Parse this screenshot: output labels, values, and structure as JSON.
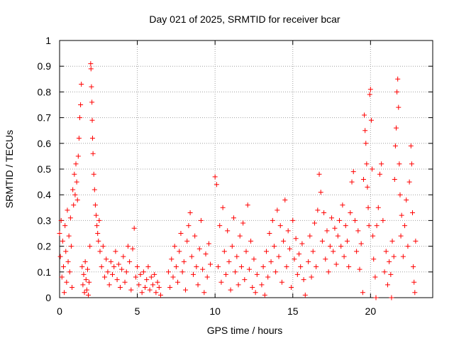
{
  "chart_data": {
    "type": "scatter",
    "title": "Day 021 of 2025, SRMTID for receiver bcar",
    "xlabel": "GPS time / hours",
    "ylabel": "SRMTID / TECUs",
    "xlim": [
      0,
      24
    ],
    "ylim": [
      0,
      1
    ],
    "grid": true,
    "legend": "none",
    "x_ticks": [
      0,
      5,
      10,
      15,
      20
    ],
    "x_tick_labels": [
      "0",
      "5",
      "10",
      "15",
      "20"
    ],
    "y_ticks": [
      0,
      0.1,
      0.2,
      0.3,
      0.4,
      0.5,
      0.6,
      0.7,
      0.8,
      0.9,
      1
    ],
    "y_tick_labels": [
      "0",
      "0.1",
      "0.2",
      "0.3",
      "0.4",
      "0.5",
      "0.6",
      "0.7",
      "0.8",
      "0.9",
      "1"
    ],
    "marker": "+",
    "series": [
      {
        "name": "SRMTID",
        "color": "#ff0000",
        "points": [
          [
            0.0,
            0.25
          ],
          [
            0.05,
            0.16
          ],
          [
            0.1,
            0.3
          ],
          [
            0.15,
            0.08
          ],
          [
            0.2,
            0.22
          ],
          [
            0.25,
            0.12
          ],
          [
            0.3,
            0.02
          ],
          [
            0.35,
            0.28
          ],
          [
            0.4,
            0.18
          ],
          [
            0.45,
            0.06
          ],
          [
            0.5,
            0.34
          ],
          [
            0.55,
            0.14
          ],
          [
            0.6,
            0.24
          ],
          [
            0.65,
            0.1
          ],
          [
            0.7,
            0.31
          ],
          [
            0.75,
            0.2
          ],
          [
            0.8,
            0.04
          ],
          [
            0.85,
            0.42
          ],
          [
            0.9,
            0.36
          ],
          [
            0.95,
            0.48
          ],
          [
            1.0,
            0.4
          ],
          [
            1.05,
            0.52
          ],
          [
            1.1,
            0.45
          ],
          [
            1.15,
            0.38
          ],
          [
            1.2,
            0.55
          ],
          [
            1.25,
            0.62
          ],
          [
            1.3,
            0.7
          ],
          [
            1.35,
            0.75
          ],
          [
            1.4,
            0.83
          ],
          [
            1.45,
            0.12
          ],
          [
            1.5,
            0.05
          ],
          [
            1.55,
            0.09
          ],
          [
            1.6,
            0.02
          ],
          [
            1.65,
            0.14
          ],
          [
            1.7,
            0.07
          ],
          [
            1.75,
            0.03
          ],
          [
            1.8,
            0.11
          ],
          [
            1.85,
            0.01
          ],
          [
            1.9,
            0.06
          ],
          [
            1.95,
            0.2
          ],
          [
            2.0,
            0.91
          ],
          [
            2.02,
            0.89
          ],
          [
            2.05,
            0.82
          ],
          [
            2.08,
            0.76
          ],
          [
            2.1,
            0.69
          ],
          [
            2.12,
            0.62
          ],
          [
            2.15,
            0.56
          ],
          [
            2.2,
            0.48
          ],
          [
            2.25,
            0.42
          ],
          [
            2.3,
            0.36
          ],
          [
            2.35,
            0.32
          ],
          [
            2.4,
            0.28
          ],
          [
            2.45,
            0.25
          ],
          [
            2.5,
            0.22
          ],
          [
            2.55,
            0.3
          ],
          [
            2.6,
            0.18
          ],
          [
            2.7,
            0.12
          ],
          [
            2.8,
            0.2
          ],
          [
            2.9,
            0.08
          ],
          [
            3.0,
            0.15
          ],
          [
            3.1,
            0.1
          ],
          [
            3.2,
            0.05
          ],
          [
            3.3,
            0.14
          ],
          [
            3.4,
            0.09
          ],
          [
            3.5,
            0.12
          ],
          [
            3.6,
            0.18
          ],
          [
            3.7,
            0.07
          ],
          [
            3.8,
            0.13
          ],
          [
            3.9,
            0.04
          ],
          [
            4.0,
            0.11
          ],
          [
            4.1,
            0.16
          ],
          [
            4.2,
            0.06
          ],
          [
            4.3,
            0.1
          ],
          [
            4.4,
            0.2
          ],
          [
            4.5,
            0.14
          ],
          [
            4.6,
            0.03
          ],
          [
            4.7,
            0.19
          ],
          [
            4.8,
            0.27
          ],
          [
            4.9,
            0.08
          ],
          [
            5.0,
            0.12
          ],
          [
            5.1,
            0.05
          ],
          [
            5.2,
            0.09
          ],
          [
            5.3,
            0.02
          ],
          [
            5.4,
            0.1
          ],
          [
            5.5,
            0.04
          ],
          [
            5.6,
            0.07
          ],
          [
            5.7,
            0.12
          ],
          [
            5.8,
            0.03
          ],
          [
            5.9,
            0.08
          ],
          [
            6.0,
            0.05
          ],
          [
            6.1,
            0.09
          ],
          [
            6.2,
            0.02
          ],
          [
            6.3,
            0.06
          ],
          [
            6.4,
            0.04
          ],
          [
            6.5,
            0.01
          ],
          [
            7.0,
            0.1
          ],
          [
            7.1,
            0.04
          ],
          [
            7.2,
            0.15
          ],
          [
            7.3,
            0.08
          ],
          [
            7.4,
            0.2
          ],
          [
            7.5,
            0.12
          ],
          [
            7.6,
            0.06
          ],
          [
            7.7,
            0.18
          ],
          [
            7.8,
            0.25
          ],
          [
            7.9,
            0.1
          ],
          [
            8.0,
            0.14
          ],
          [
            8.1,
            0.03
          ],
          [
            8.2,
            0.22
          ],
          [
            8.3,
            0.28
          ],
          [
            8.4,
            0.33
          ],
          [
            8.5,
            0.16
          ],
          [
            8.6,
            0.09
          ],
          [
            8.7,
            0.24
          ],
          [
            8.8,
            0.12
          ],
          [
            8.9,
            0.05
          ],
          [
            9.0,
            0.19
          ],
          [
            9.1,
            0.3
          ],
          [
            9.2,
            0.11
          ],
          [
            9.3,
            0.02
          ],
          [
            9.4,
            0.17
          ],
          [
            9.5,
            0.08
          ],
          [
            9.6,
            0.21
          ],
          [
            9.7,
            0.13
          ],
          [
            10.0,
            0.47
          ],
          [
            10.1,
            0.44
          ],
          [
            10.2,
            0.12
          ],
          [
            10.3,
            0.28
          ],
          [
            10.4,
            0.06
          ],
          [
            10.5,
            0.35
          ],
          [
            10.6,
            0.18
          ],
          [
            10.7,
            0.09
          ],
          [
            10.8,
            0.26
          ],
          [
            10.9,
            0.14
          ],
          [
            11.0,
            0.03
          ],
          [
            11.1,
            0.2
          ],
          [
            11.2,
            0.31
          ],
          [
            11.3,
            0.1
          ],
          [
            11.4,
            0.16
          ],
          [
            11.5,
            0.05
          ],
          [
            11.6,
            0.24
          ],
          [
            11.7,
            0.12
          ],
          [
            11.8,
            0.29
          ],
          [
            11.9,
            0.07
          ],
          [
            12.0,
            0.18
          ],
          [
            12.1,
            0.36
          ],
          [
            12.2,
            0.11
          ],
          [
            12.3,
            0.22
          ],
          [
            12.4,
            0.04
          ],
          [
            12.5,
            0.15
          ],
          [
            12.6,
            0.02
          ],
          [
            12.7,
            0.09
          ],
          [
            13.0,
            0.05
          ],
          [
            13.1,
            0.12
          ],
          [
            13.2,
            0.01
          ],
          [
            13.3,
            0.18
          ],
          [
            13.4,
            0.08
          ],
          [
            13.5,
            0.25
          ],
          [
            13.6,
            0.14
          ],
          [
            13.7,
            0.3
          ],
          [
            13.8,
            0.2
          ],
          [
            13.9,
            0.1
          ],
          [
            14.0,
            0.34
          ],
          [
            14.1,
            0.16
          ],
          [
            14.2,
            0.28
          ],
          [
            14.3,
            0.06
          ],
          [
            14.4,
            0.22
          ],
          [
            14.5,
            0.38
          ],
          [
            14.6,
            0.12
          ],
          [
            14.7,
            0.26
          ],
          [
            14.8,
            0.19
          ],
          [
            14.9,
            0.04
          ],
          [
            15.0,
            0.3
          ],
          [
            15.1,
            0.15
          ],
          [
            15.2,
            0.23
          ],
          [
            15.3,
            0.09
          ],
          [
            15.4,
            0.17
          ],
          [
            15.5,
            0.12
          ],
          [
            15.6,
            0.21
          ],
          [
            15.7,
            0.07
          ],
          [
            15.8,
            0.01
          ],
          [
            16.0,
            0.14
          ],
          [
            16.1,
            0.24
          ],
          [
            16.2,
            0.08
          ],
          [
            16.3,
            0.18
          ],
          [
            16.4,
            0.29
          ],
          [
            16.5,
            0.12
          ],
          [
            16.6,
            0.34
          ],
          [
            16.7,
            0.48
          ],
          [
            16.8,
            0.41
          ],
          [
            16.9,
            0.22
          ],
          [
            17.0,
            0.33
          ],
          [
            17.1,
            0.15
          ],
          [
            17.2,
            0.26
          ],
          [
            17.3,
            0.1
          ],
          [
            17.4,
            0.2
          ],
          [
            17.5,
            0.31
          ],
          [
            17.6,
            0.18
          ],
          [
            17.7,
            0.27
          ],
          [
            17.8,
            0.13
          ],
          [
            17.9,
            0.24
          ],
          [
            18.0,
            0.3
          ],
          [
            18.1,
            0.2
          ],
          [
            18.2,
            0.36
          ],
          [
            18.3,
            0.16
          ],
          [
            18.4,
            0.28
          ],
          [
            18.5,
            0.22
          ],
          [
            18.6,
            0.12
          ],
          [
            18.7,
            0.33
          ],
          [
            18.8,
            0.45
          ],
          [
            18.9,
            0.49
          ],
          [
            19.0,
            0.3
          ],
          [
            19.1,
            0.18
          ],
          [
            19.2,
            0.26
          ],
          [
            19.3,
            0.11
          ],
          [
            19.4,
            0.21
          ],
          [
            19.5,
            0.02
          ],
          [
            19.55,
            0.46
          ],
          [
            19.6,
            0.71
          ],
          [
            19.65,
            0.65
          ],
          [
            19.7,
            0.6
          ],
          [
            19.75,
            0.52
          ],
          [
            19.8,
            0.43
          ],
          [
            19.85,
            0.35
          ],
          [
            19.9,
            0.28
          ],
          [
            19.95,
            0.79
          ],
          [
            20.0,
            0.81
          ],
          [
            20.05,
            0.69
          ],
          [
            20.1,
            0.5
          ],
          [
            20.15,
            0.24
          ],
          [
            20.2,
            0.15
          ],
          [
            20.3,
            0.08
          ],
          [
            20.35,
            0.0
          ],
          [
            20.4,
            0.28
          ],
          [
            20.5,
            0.35
          ],
          [
            20.6,
            0.48
          ],
          [
            20.7,
            0.52
          ],
          [
            20.8,
            0.3
          ],
          [
            20.9,
            0.1
          ],
          [
            21.0,
            0.18
          ],
          [
            21.1,
            0.05
          ],
          [
            21.2,
            0.14
          ],
          [
            21.3,
            0.09
          ],
          [
            21.35,
            0.0
          ],
          [
            21.4,
            0.22
          ],
          [
            21.5,
            0.16
          ],
          [
            21.55,
            0.46
          ],
          [
            21.6,
            0.59
          ],
          [
            21.65,
            0.66
          ],
          [
            21.7,
            0.8
          ],
          [
            21.75,
            0.85
          ],
          [
            21.8,
            0.74
          ],
          [
            21.85,
            0.52
          ],
          [
            21.9,
            0.4
          ],
          [
            21.95,
            0.24
          ],
          [
            22.0,
            0.32
          ],
          [
            22.1,
            0.16
          ],
          [
            22.2,
            0.28
          ],
          [
            22.3,
            0.38
          ],
          [
            22.4,
            0.2
          ],
          [
            22.5,
            0.45
          ],
          [
            22.6,
            0.59
          ],
          [
            22.65,
            0.52
          ],
          [
            22.7,
            0.33
          ],
          [
            22.75,
            0.12
          ],
          [
            22.8,
            0.06
          ],
          [
            22.85,
            0.02
          ],
          [
            22.9,
            0.22
          ]
        ]
      }
    ]
  }
}
